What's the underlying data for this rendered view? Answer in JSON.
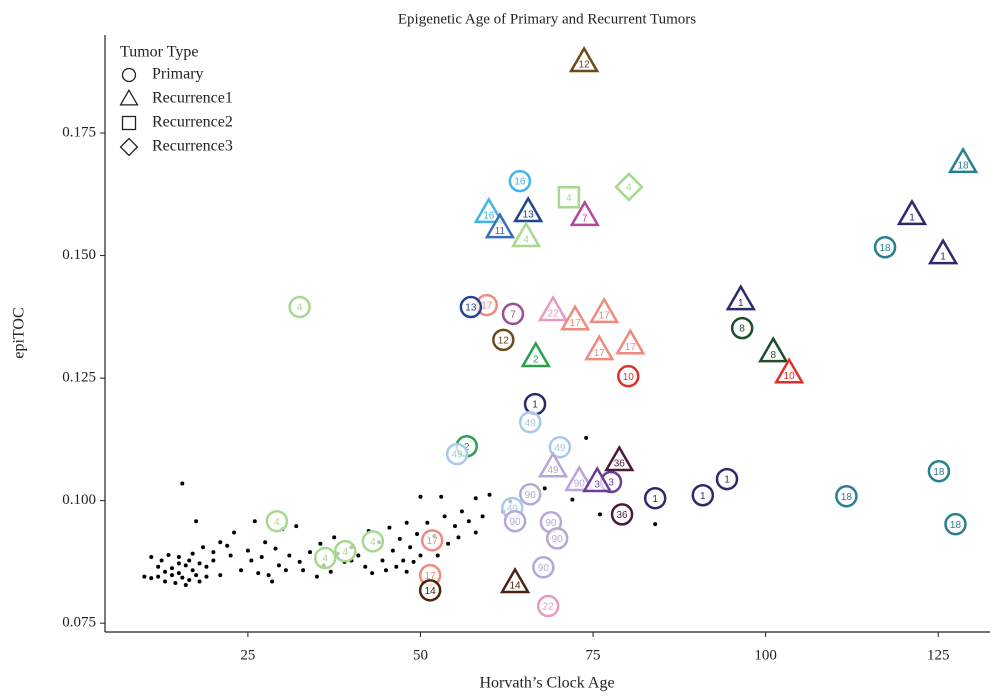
{
  "chart_data": {
    "type": "scatter",
    "title": "Epigenetic Age of Primary and Recurrent Tumors",
    "x_label": "Horvath’s Clock Age",
    "y_label": "epiTOC",
    "legend_title": "Tumor Type",
    "legend": "top-left",
    "xlim": [
      4.3,
      132.5
    ],
    "xticks": [
      25,
      50,
      75,
      100,
      125
    ],
    "ylim": [
      0.0732,
      0.195
    ],
    "yticks": [
      0.075,
      {
        "value": 0.1,
        "label": "0.100"
      },
      0.125,
      {
        "value": 0.15,
        "label": "0.150"
      },
      0.175
    ],
    "series": [
      {
        "name": "Primary",
        "marker": "circle",
        "x": [
          32.5,
          64.4,
          59.6,
          57.3,
          63.4,
          62.0,
          66.6,
          65.9,
          80.1,
          96.6,
          117.3,
          125.1,
          111.7,
          127.5,
          56.7,
          55.3,
          70.2,
          65.9,
          63.3,
          63.7,
          68.9,
          69.8,
          67.8,
          68.5,
          77.6,
          79.2,
          84.0,
          90.9,
          94.4,
          29.2,
          36.2,
          39.1,
          43.1,
          51.7,
          51.4,
          51.4
        ],
        "values": [
          0.1395,
          0.1652,
          0.1399,
          0.1395,
          0.1381,
          0.1328,
          0.1197,
          0.116,
          0.1254,
          0.1352,
          0.1517,
          0.106,
          0.1009,
          0.0952,
          0.1111,
          0.1095,
          0.1109,
          0.1013,
          0.0985,
          0.0958,
          0.0956,
          0.0923,
          0.0864,
          0.0785,
          0.1038,
          0.0972,
          0.1005,
          0.1011,
          0.1044,
          0.0958,
          0.0883,
          0.0897,
          0.0917,
          0.0919,
          0.0848,
          0.0817
        ],
        "labels": [
          "4",
          "16",
          "17",
          "13",
          "7",
          "12",
          "1",
          "49",
          "10",
          "8",
          "18",
          "18",
          "18",
          "18",
          "2",
          "49",
          "49",
          "90",
          "49",
          "90",
          "90",
          "90",
          "90",
          "22",
          "3",
          "36",
          "1",
          "1",
          "1",
          "4",
          "4",
          "4",
          "4",
          "17",
          "17",
          "14"
        ],
        "colors": [
          "#a6d88e",
          "#3fb6e6",
          "#f08a7e",
          "#24438f",
          "#9c4f96",
          "#6b4a1e",
          "#2b2a6e",
          "#a8c8ec",
          "#e0302a",
          "#1e4d2b",
          "#2a7f8f",
          "#2a7f8f",
          "#2a7f8f",
          "#2a7f8f",
          "#2ca04c",
          "#a8c8ec",
          "#a8c8ec",
          "#b8a6d6",
          "#a8c8ec",
          "#b8a6d6",
          "#b8a6d6",
          "#b8a6d6",
          "#b8a6d6",
          "#e89ac5",
          "#6a3d9a",
          "#4a1a3a",
          "#2b2a6e",
          "#2b2a6e",
          "#2b2a6e",
          "#a6d88e",
          "#a6d88e",
          "#a6d88e",
          "#a6d88e",
          "#f08a7e",
          "#f08a7e",
          "#4a2412"
        ]
      },
      {
        "name": "Recurrence1",
        "marker": "triangle",
        "x": [
          73.7,
          128.6,
          121.2,
          125.7,
          96.4,
          59.9,
          65.6,
          61.5,
          65.3,
          73.8,
          69.2,
          72.4,
          76.6,
          75.9,
          80.4,
          66.7,
          101.1,
          103.4,
          69.2,
          73.0,
          75.6,
          78.8,
          63.7
        ],
        "values": [
          0.1895,
          0.1689,
          0.1583,
          0.1503,
          0.1409,
          0.1587,
          0.1589,
          0.1556,
          0.1538,
          0.1581,
          0.1387,
          0.1368,
          0.1383,
          0.1307,
          0.1319,
          0.1293,
          0.1303,
          0.126,
          0.1068,
          0.104,
          0.1038,
          0.1081,
          0.0832
        ],
        "labels": [
          "12",
          "18",
          "1",
          "1",
          "1",
          "16",
          "13",
          "11",
          "4",
          "7",
          "22",
          "17",
          "17",
          "17",
          "17",
          "2",
          "8",
          "10",
          "49",
          "90",
          "3",
          "36",
          "14"
        ],
        "colors": [
          "#6b4a1e",
          "#2a7f8f",
          "#2b2a6e",
          "#2b2a6e",
          "#2b2a6e",
          "#3fb6e6",
          "#24438f",
          "#3a6fb8",
          "#a6d88e",
          "#b3479a",
          "#e89ac5",
          "#f08a7e",
          "#f08a7e",
          "#f08a7e",
          "#f08a7e",
          "#2ca04c",
          "#1e4d2b",
          "#e0302a",
          "#b8a6d6",
          "#b8a6d6",
          "#6a3d9a",
          "#4a1a3a",
          "#4a2412"
        ]
      },
      {
        "name": "Recurrence2",
        "marker": "square",
        "x": [
          71.5
        ],
        "values": [
          0.1619
        ],
        "labels": [
          "4"
        ],
        "colors": [
          "#a6d88e"
        ]
      },
      {
        "name": "Recurrence3",
        "marker": "diamond",
        "x": [
          80.2
        ],
        "values": [
          0.164
        ],
        "labels": [
          "4"
        ],
        "colors": [
          "#a6d88e"
        ]
      },
      {
        "marker": "dot",
        "color": "#000000",
        "x": [
          10,
          11,
          11,
          12,
          12,
          12.5,
          13,
          13,
          13.5,
          14,
          14,
          14.5,
          15,
          15,
          15,
          15.5,
          15.5,
          16,
          16,
          16.5,
          16.5,
          17,
          17,
          17.5,
          17.5,
          18,
          18,
          18.5,
          19,
          19,
          20,
          20,
          21,
          21,
          22,
          22.5,
          23,
          24,
          25,
          25.5,
          26,
          26.5,
          27,
          27.5,
          28,
          28.5,
          29,
          29.5,
          30,
          30.5,
          31,
          32,
          32.5,
          33,
          34,
          35,
          35.5,
          36,
          37,
          37.5,
          38,
          39,
          40,
          40,
          41,
          42,
          42.5,
          43,
          44,
          44.5,
          45,
          45.5,
          46,
          46.5,
          47,
          47.5,
          48,
          48,
          48.5,
          49,
          49.5,
          50,
          50,
          51,
          52,
          52.5,
          53,
          53.5,
          54,
          55,
          55.5,
          56,
          57,
          58,
          58,
          59,
          60,
          62,
          63,
          68,
          72,
          74,
          76,
          84
        ],
        "values": [
          0.0845,
          0.0885,
          0.0842,
          0.0865,
          0.0845,
          0.0878,
          0.0855,
          0.0835,
          0.0889,
          0.0848,
          0.0862,
          0.0832,
          0.0872,
          0.0852,
          0.0885,
          0.1035,
          0.0843,
          0.0868,
          0.0828,
          0.0878,
          0.0838,
          0.0858,
          0.0892,
          0.0958,
          0.0848,
          0.0872,
          0.0835,
          0.0905,
          0.0865,
          0.0845,
          0.0895,
          0.0878,
          0.0915,
          0.0848,
          0.0908,
          0.0888,
          0.0935,
          0.0858,
          0.0898,
          0.0878,
          0.0958,
          0.0852,
          0.0885,
          0.0915,
          0.0848,
          0.0835,
          0.0902,
          0.0868,
          0.0942,
          0.0858,
          0.0888,
          0.0948,
          0.0875,
          0.0858,
          0.0895,
          0.0845,
          0.0912,
          0.0868,
          0.0855,
          0.0925,
          0.0892,
          0.0875,
          0.0905,
          0.0878,
          0.0888,
          0.0865,
          0.0938,
          0.0852,
          0.0915,
          0.0878,
          0.0858,
          0.0945,
          0.0898,
          0.0865,
          0.0922,
          0.0878,
          0.0955,
          0.0855,
          0.0905,
          0.0875,
          0.0932,
          0.1008,
          0.0888,
          0.0955,
          0.0928,
          0.0888,
          0.1008,
          0.0968,
          0.0912,
          0.0948,
          0.0925,
          0.0978,
          0.0958,
          0.1005,
          0.0935,
          0.0968,
          0.1012,
          0.0978,
          0.0998,
          0.1025,
          0.1002,
          0.1128,
          0.0972,
          0.0952
        ]
      }
    ]
  }
}
